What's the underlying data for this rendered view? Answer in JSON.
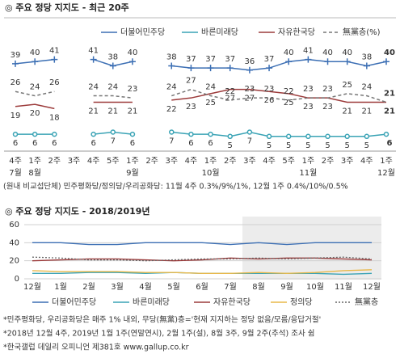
{
  "chart_data": [
    {
      "type": "line",
      "title": "◎ 주요 정당 지지도 - 최근 20주",
      "categories": [
        "4주",
        "1주",
        "2주",
        "3주",
        "4주",
        "5주",
        "1주",
        "2주",
        "3주",
        "4주",
        "1주",
        "2주",
        "3주",
        "4주",
        "5주",
        "1주",
        "2주",
        "3주",
        "4주",
        "1주"
      ],
      "month_labels": [
        "7월",
        "8월",
        null,
        null,
        null,
        null,
        "9월",
        null,
        null,
        null,
        "10월",
        null,
        null,
        null,
        null,
        "11월",
        null,
        null,
        null,
        "12월"
      ],
      "ylim": [
        0,
        45
      ],
      "series": [
        {
          "name": "더불어민주당",
          "color": "#3c6fb4",
          "marker": "plus",
          "values": [
            39,
            40,
            41,
            null,
            41,
            38,
            40,
            null,
            38,
            37,
            37,
            37,
            36,
            37,
            40,
            41,
            40,
            40,
            38,
            40
          ]
        },
        {
          "name": "바른미래당",
          "color": "#3aa3b5",
          "marker": "circle",
          "values": [
            6,
            6,
            6,
            null,
            6,
            7,
            6,
            null,
            7,
            6,
            6,
            5,
            7,
            5,
            5,
            5,
            5,
            5,
            5,
            6
          ]
        },
        {
          "name": "자유한국당",
          "color": "#9c3b3b",
          "marker": "none",
          "values": [
            19,
            20,
            18,
            null,
            21,
            21,
            21,
            null,
            22,
            23,
            25,
            27,
            27,
            26,
            25,
            23,
            23,
            21,
            21,
            21
          ]
        },
        {
          "name": "無黨층(%)",
          "color": "#777777",
          "marker": "none",
          "dash": true,
          "values": [
            26,
            24,
            26,
            null,
            24,
            24,
            23,
            null,
            24,
            27,
            24,
            22,
            23,
            23,
            22,
            23,
            23,
            25,
            24,
            21
          ]
        }
      ],
      "footnote": "(원내 비교섭단체) 민주평화당/정의당/우리공화당: 11월 4주 0.3%/9%/1%, 12월 1주 0.4%/10%/0.5%"
    },
    {
      "type": "line",
      "title": "◎ 주요 정당 지지도 - 2018/2019년",
      "categories": [
        "12월",
        "1월",
        "2월",
        "3월",
        "4월",
        "5월",
        "6월",
        "7월",
        "8월",
        "9월",
        "10월",
        "11월",
        "12월"
      ],
      "ylim": [
        0,
        60
      ],
      "yticks": [
        0,
        20,
        40,
        60
      ],
      "grid": true,
      "series": [
        {
          "name": "더불어민주당",
          "color": "#3c6fb4",
          "values": [
            40,
            40,
            38,
            38,
            40,
            40,
            40,
            38,
            40,
            38,
            40,
            40,
            40
          ]
        },
        {
          "name": "바른미래당",
          "color": "#3aa3b5",
          "values": [
            6,
            6,
            7,
            7,
            6,
            7,
            6,
            6,
            6,
            6,
            6,
            5,
            6
          ]
        },
        {
          "name": "자유한국당",
          "color": "#9c3b3b",
          "values": [
            20,
            21,
            22,
            22,
            21,
            20,
            21,
            23,
            22,
            23,
            23,
            22,
            21
          ]
        },
        {
          "name": "정의당",
          "color": "#e8b84a",
          "values": [
            9,
            8,
            8,
            8,
            7,
            7,
            6,
            6,
            7,
            6,
            7,
            9,
            10
          ]
        },
        {
          "name": "無黨층",
          "color": "#666666",
          "dash": true,
          "values": [
            24,
            23,
            21,
            21,
            20,
            21,
            22,
            22,
            23,
            22,
            23,
            24,
            22
          ]
        }
      ],
      "notes": [
        "*민주평화당, 우리공화당은 매주 1% 내외, 무당(無黨)층='현재 지지하는 정당 없음/모름/응답거절'",
        "*2018년 12월 4주, 2019년 1월 1주(연말연시), 2월 1주(설), 8월 3주, 9월 2주(추석) 조사 쉼",
        "*한국갤럽 데일리 오피니언 제381호 www.gallup.co.kr"
      ]
    }
  ]
}
